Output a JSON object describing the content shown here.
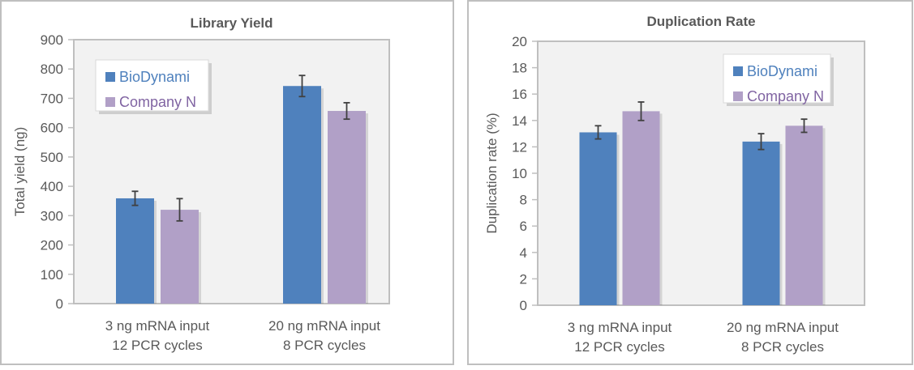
{
  "chart_data": [
    {
      "type": "bar",
      "title": "Library Yield",
      "xlabel": "",
      "ylabel": "Total yield (ng)",
      "ylim": [
        0,
        900
      ],
      "yticks": [
        0,
        100,
        200,
        300,
        400,
        500,
        600,
        700,
        800,
        900
      ],
      "categories": [
        [
          "3 ng  mRNA input",
          "12 PCR cycles"
        ],
        [
          "20 ng mRNA input",
          "8 PCR cycles"
        ]
      ],
      "series": [
        {
          "name": "BioDynami",
          "color": "#4f81bd",
          "values": [
            359,
            742
          ],
          "errors": [
            24,
            36
          ]
        },
        {
          "name": "Company N",
          "color": "#b1a0c7",
          "values": [
            320,
            657
          ],
          "errors": [
            38,
            28
          ]
        }
      ],
      "legend": "top-left",
      "grid": false,
      "error_bars": true
    },
    {
      "type": "bar",
      "title": "Duplication Rate",
      "xlabel": "",
      "ylabel": "Duplication rate (%)",
      "ylim": [
        0,
        20
      ],
      "yticks": [
        0,
        2,
        4,
        6,
        8,
        10,
        12,
        14,
        16,
        18,
        20
      ],
      "categories": [
        [
          "3 ng mRNA input",
          "12 PCR cycles"
        ],
        [
          "20 ng mRNA input",
          "8 PCR cycles"
        ]
      ],
      "series": [
        {
          "name": "BioDynami",
          "color": "#4f81bd",
          "values": [
            13.1,
            12.4
          ],
          "errors": [
            0.5,
            0.6
          ]
        },
        {
          "name": "Company N",
          "color": "#b1a0c7",
          "values": [
            14.7,
            13.6
          ],
          "errors": [
            0.7,
            0.5
          ]
        }
      ],
      "legend": "top-right",
      "grid": false,
      "error_bars": true
    }
  ],
  "colors": {
    "plot_bg": "#f2f2f2",
    "axis": "#bfbfbf",
    "text": "#595959",
    "legend_bio_text": "#4f81bd",
    "legend_compn_text": "#8064a2"
  }
}
